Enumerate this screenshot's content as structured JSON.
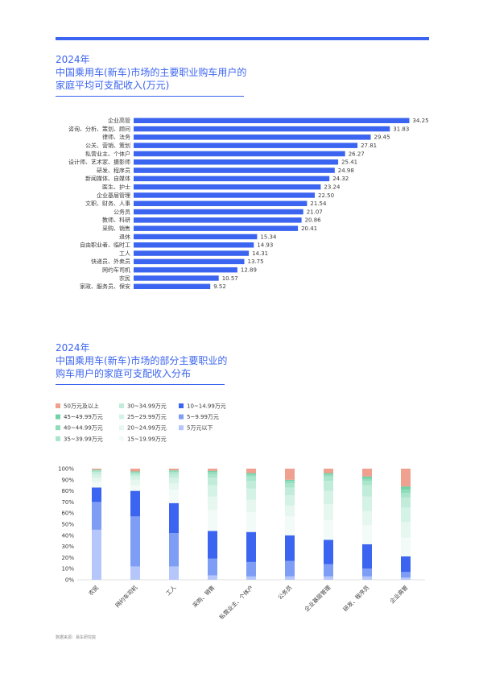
{
  "section1": {
    "year": "2024年",
    "title_line1": "中国乘用车(新车)市场的主要职业购车用户的",
    "title_line2": "家庭平均可支配收入(万元)"
  },
  "section2": {
    "year": "2024年",
    "title_line1": "中国乘用车(新车)市场的部分主要职业的",
    "title_line2": "购车用户的家庭可支配收入分布"
  },
  "source": "数据来源：易车研究院",
  "colors": {
    "accent": "#3b64f0"
  },
  "chart_data": [
    {
      "type": "bar",
      "orientation": "horizontal",
      "categories": [
        "企业高管",
        "咨询、分析、策划、顾问",
        "律师、法务",
        "公关、营销、策划",
        "私营业主、个体户",
        "设计师、艺术家、摄影师",
        "研发、程序员",
        "新闻媒体、自媒体",
        "医生、护士",
        "企业基层管理",
        "文职、财务、人事",
        "公务员",
        "教师、科研",
        "采购、销售",
        "退休",
        "自由职业者、临时工",
        "工人",
        "快递员、外卖员",
        "网约车司机",
        "农民",
        "家政、服务员、保安"
      ],
      "values": [
        34.25,
        31.83,
        29.45,
        27.81,
        26.27,
        25.41,
        24.98,
        24.32,
        23.24,
        22.5,
        21.54,
        21.07,
        20.86,
        20.41,
        15.34,
        14.93,
        14.31,
        13.75,
        12.89,
        10.57,
        9.52
      ],
      "value_labels": [
        "34.25",
        "31.83",
        "29.45",
        "27.81",
        "26.27",
        "25.41",
        "24.98",
        "24.32",
        "23.24",
        "22.50",
        "21.54",
        "21.07",
        "20.86",
        "20.41",
        "15.34",
        "14.93",
        "14.31",
        "13.75",
        "12.89",
        "10.57",
        "9.52"
      ],
      "color": "#3b64f0"
    },
    {
      "type": "bar",
      "stacked": true,
      "categories": [
        "农民",
        "网约车司机",
        "工人",
        "采购、销售",
        "私营业主、个体户",
        "公务员",
        "企业基层管理",
        "研发、程序员",
        "企业高管"
      ],
      "yticks": [
        "0%",
        "10%",
        "20%",
        "30%",
        "40%",
        "50%",
        "60%",
        "70%",
        "80%",
        "90%",
        "100%"
      ],
      "ylim": [
        0,
        100
      ],
      "grid": false,
      "legend_position": "top",
      "series": [
        {
          "name": "5万元以下",
          "color": "#b5c7fa",
          "values": [
            45,
            12,
            12,
            4,
            3,
            3,
            3,
            3,
            2
          ]
        },
        {
          "name": "5~9.99万元",
          "color": "#7e9ef5",
          "values": [
            25,
            45,
            30,
            15,
            13,
            14,
            11,
            7,
            5
          ]
        },
        {
          "name": "10~14.99万元",
          "color": "#3b64f0",
          "values": [
            13,
            23,
            27,
            25,
            27,
            23,
            22,
            22,
            14
          ]
        },
        {
          "name": "15~19.99万元",
          "color": "#f2fbf7",
          "values": [
            5,
            5,
            12,
            19,
            18,
            17,
            18,
            17,
            17
          ]
        },
        {
          "name": "20~24.99万元",
          "color": "#e5f7ef",
          "values": [
            4,
            5,
            6,
            12,
            11,
            10,
            14,
            13,
            14
          ]
        },
        {
          "name": "25~29.99万元",
          "color": "#d4f2e5",
          "values": [
            3,
            3,
            5,
            10,
            10,
            9,
            12,
            13,
            13
          ]
        },
        {
          "name": "30~34.99万元",
          "color": "#c1ecd9",
          "values": [
            2,
            2,
            3,
            7,
            7,
            7,
            9,
            10,
            9
          ]
        },
        {
          "name": "35~39.99万元",
          "color": "#a9e5cb",
          "values": [
            1,
            1,
            2,
            3,
            4,
            4,
            4,
            4,
            4
          ]
        },
        {
          "name": "40~44.99万元",
          "color": "#8fdcba",
          "values": [
            0.5,
            1,
            1,
            2,
            2,
            2,
            2,
            2,
            3
          ]
        },
        {
          "name": "45~49.99万元",
          "color": "#72d1a7",
          "values": [
            0.5,
            0.5,
            0.5,
            1,
            1,
            1,
            1,
            2,
            3
          ]
        },
        {
          "name": "50万元及以上",
          "color": "#f0a08f",
          "values": [
            1,
            2.5,
            1.5,
            2,
            4,
            10,
            4,
            7,
            16
          ]
        }
      ]
    }
  ]
}
